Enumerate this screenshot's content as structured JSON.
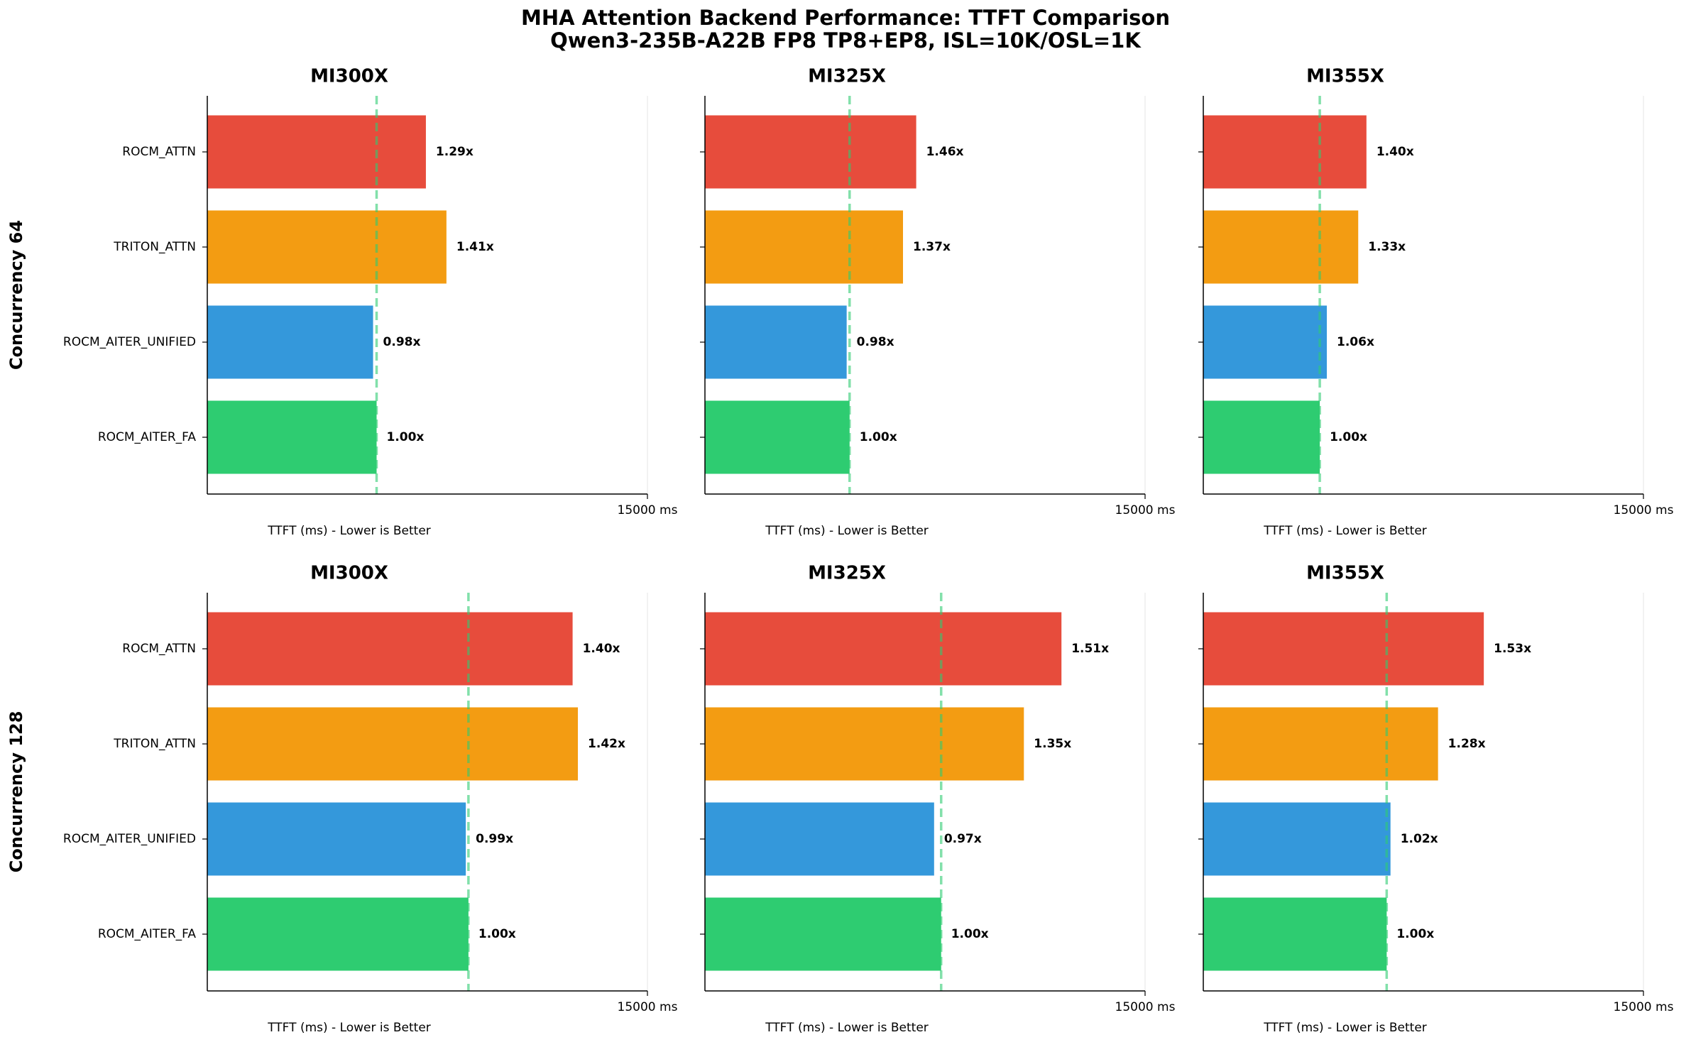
{
  "title": "MHA Attention Backend Performance: TTFT Comparison",
  "subtitle": "Qwen3-235B-A22B FP8 TP8+EP8, ISL=10K/OSL=1K",
  "categories": [
    "ROCM_ATTN",
    "TRITON_ATTN",
    "ROCM_AITER_UNIFIED",
    "ROCM_AITER_FA"
  ],
  "colors": [
    "#e74c3c",
    "#f39c12",
    "#3498db",
    "#2ecc71"
  ],
  "xlim": [
    0,
    15000
  ],
  "xticks": [
    {
      "value": 15000,
      "label": "15000 ms"
    }
  ],
  "xlabel": "TTFT (ms) - Lower is Better",
  "chart_data": [
    {
      "type": "bar",
      "title": "MI300X",
      "ylabel": "Concurrency 64",
      "values": [
        7450,
        8150,
        5650,
        5770
      ],
      "annotations": [
        "1.29x",
        "1.41x",
        "0.98x",
        "1.00x"
      ]
    },
    {
      "type": "bar",
      "title": "MI325X",
      "values": [
        7200,
        6750,
        4830,
        4930
      ],
      "annotations": [
        "1.46x",
        "1.37x",
        "0.98x",
        "1.00x"
      ]
    },
    {
      "type": "bar",
      "title": "MI355X",
      "values": [
        5560,
        5280,
        4210,
        3970
      ],
      "annotations": [
        "1.40x",
        "1.33x",
        "1.06x",
        "1.00x"
      ]
    },
    {
      "type": "bar",
      "title": "MI300X",
      "ylabel": "Concurrency 128",
      "values": [
        12450,
        12630,
        8810,
        8900
      ],
      "annotations": [
        "1.40x",
        "1.42x",
        "0.99x",
        "1.00x"
      ]
    },
    {
      "type": "bar",
      "title": "MI325X",
      "values": [
        12150,
        10870,
        7810,
        8050
      ],
      "annotations": [
        "1.51x",
        "1.35x",
        "0.97x",
        "1.00x"
      ]
    },
    {
      "type": "bar",
      "title": "MI355X",
      "values": [
        9560,
        8000,
        6380,
        6250
      ],
      "annotations": [
        "1.53x",
        "1.28x",
        "1.02x",
        "1.00x"
      ]
    }
  ]
}
